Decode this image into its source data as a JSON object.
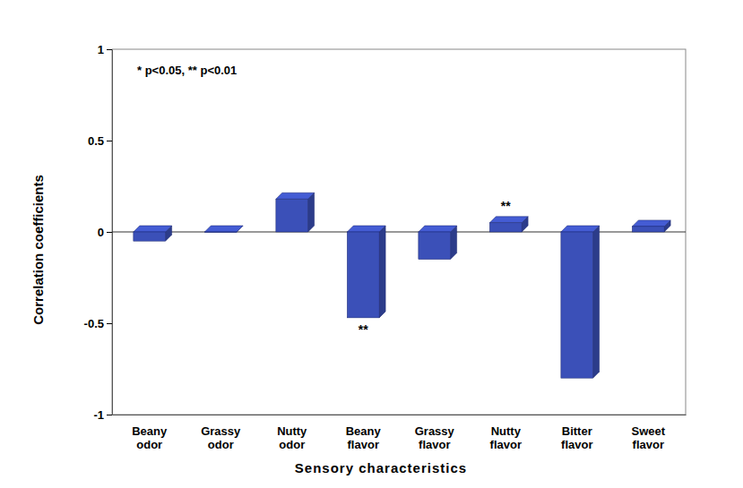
{
  "chart_data": {
    "type": "bar",
    "annotation": "* p<0.05, ** p<0.01",
    "x_label": "Sensory characteristics",
    "y_label": "Correlation coefficients",
    "categories": [
      "Beany odor",
      "Grassy odor",
      "Nutty odor",
      "Beany flavor",
      "Grassy flavor",
      "Nutty flavor",
      "Bitter flavor",
      "Sweet flavor"
    ],
    "values": [
      -0.05,
      0.0,
      0.18,
      -0.47,
      -0.15,
      0.05,
      -0.8,
      0.03
    ],
    "significance": [
      null,
      null,
      null,
      "**",
      null,
      "**",
      null,
      null
    ],
    "color": "#3b50b8",
    "ylim": [
      -1,
      1
    ],
    "yticks": [
      -1,
      -0.5,
      0,
      0.5,
      1
    ],
    "grid": false
  }
}
